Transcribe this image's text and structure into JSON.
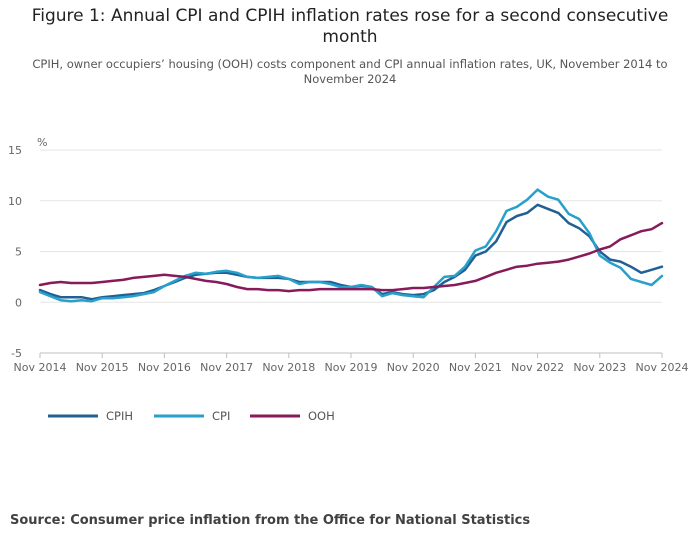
{
  "header": {
    "title": "Figure 1: Annual CPI and CPIH inflation rates rose for a second consecutive month",
    "subtitle": "CPIH, owner occupiers’ housing (OOH) costs component and CPI annual inflation rates, UK, November 2014 to November 2024"
  },
  "footer": {
    "source": "Source: Consumer price inflation from the Office for National Statistics"
  },
  "chart_data": {
    "type": "line",
    "ylabel": "%",
    "ylim": [
      -5,
      15
    ],
    "yticks": [
      "15",
      "10",
      "5",
      "0",
      "-5"
    ],
    "ytick_values": [
      15,
      10,
      5,
      0,
      -5
    ],
    "xlim": [
      0,
      120
    ],
    "xtick_labels": [
      "Nov 2014",
      "Nov 2015",
      "Nov 2016",
      "Nov 2017",
      "Nov 2018",
      "Nov 2019",
      "Nov 2020",
      "Nov 2021",
      "Nov 2022",
      "Nov 2023",
      "Nov 2024"
    ],
    "xtick_values": [
      0,
      12,
      24,
      36,
      48,
      60,
      72,
      84,
      96,
      108,
      120
    ],
    "grid": true,
    "legend_position": "bottom-left",
    "colors": {
      "CPIH": "#206095",
      "CPI": "#27A0CC",
      "OOH": "#871A5B",
      "grid": "#e6e6e6",
      "axis": "#bfbfbf"
    },
    "series": [
      {
        "name": "CPIH",
        "points": [
          [
            0,
            1.2
          ],
          [
            2,
            0.8
          ],
          [
            4,
            0.5
          ],
          [
            6,
            0.5
          ],
          [
            8,
            0.5
          ],
          [
            10,
            0.3
          ],
          [
            12,
            0.5
          ],
          [
            14,
            0.6
          ],
          [
            16,
            0.7
          ],
          [
            18,
            0.8
          ],
          [
            20,
            0.9
          ],
          [
            22,
            1.2
          ],
          [
            24,
            1.6
          ],
          [
            26,
            2.0
          ],
          [
            28,
            2.4
          ],
          [
            30,
            2.7
          ],
          [
            32,
            2.8
          ],
          [
            34,
            2.9
          ],
          [
            36,
            2.9
          ],
          [
            38,
            2.7
          ],
          [
            40,
            2.5
          ],
          [
            42,
            2.4
          ],
          [
            44,
            2.4
          ],
          [
            46,
            2.4
          ],
          [
            48,
            2.3
          ],
          [
            50,
            2.0
          ],
          [
            52,
            2.0
          ],
          [
            54,
            2.0
          ],
          [
            56,
            2.0
          ],
          [
            58,
            1.7
          ],
          [
            60,
            1.5
          ],
          [
            62,
            1.6
          ],
          [
            64,
            1.5
          ],
          [
            66,
            0.8
          ],
          [
            68,
            1.0
          ],
          [
            70,
            0.8
          ],
          [
            72,
            0.7
          ],
          [
            74,
            0.8
          ],
          [
            76,
            1.2
          ],
          [
            78,
            2.0
          ],
          [
            80,
            2.5
          ],
          [
            82,
            3.2
          ],
          [
            84,
            4.6
          ],
          [
            86,
            5.0
          ],
          [
            88,
            6.0
          ],
          [
            90,
            7.9
          ],
          [
            92,
            8.5
          ],
          [
            94,
            8.8
          ],
          [
            96,
            9.6
          ],
          [
            98,
            9.2
          ],
          [
            100,
            8.8
          ],
          [
            102,
            7.8
          ],
          [
            104,
            7.3
          ],
          [
            106,
            6.5
          ],
          [
            108,
            5.0
          ],
          [
            110,
            4.2
          ],
          [
            112,
            4.0
          ],
          [
            114,
            3.5
          ],
          [
            116,
            2.9
          ],
          [
            118,
            3.2
          ],
          [
            120,
            3.5
          ]
        ]
      },
      {
        "name": "CPI",
        "points": [
          [
            0,
            1.0
          ],
          [
            2,
            0.6
          ],
          [
            4,
            0.2
          ],
          [
            6,
            0.1
          ],
          [
            8,
            0.2
          ],
          [
            10,
            0.1
          ],
          [
            12,
            0.4
          ],
          [
            14,
            0.4
          ],
          [
            16,
            0.5
          ],
          [
            18,
            0.6
          ],
          [
            20,
            0.8
          ],
          [
            22,
            1.0
          ],
          [
            24,
            1.6
          ],
          [
            26,
            2.1
          ],
          [
            28,
            2.6
          ],
          [
            30,
            2.9
          ],
          [
            32,
            2.8
          ],
          [
            34,
            3.0
          ],
          [
            36,
            3.1
          ],
          [
            38,
            2.9
          ],
          [
            40,
            2.5
          ],
          [
            42,
            2.4
          ],
          [
            44,
            2.5
          ],
          [
            46,
            2.6
          ],
          [
            48,
            2.3
          ],
          [
            50,
            1.8
          ],
          [
            52,
            2.0
          ],
          [
            54,
            2.0
          ],
          [
            56,
            1.8
          ],
          [
            58,
            1.5
          ],
          [
            60,
            1.5
          ],
          [
            62,
            1.7
          ],
          [
            64,
            1.5
          ],
          [
            66,
            0.6
          ],
          [
            68,
            0.9
          ],
          [
            70,
            0.7
          ],
          [
            72,
            0.6
          ],
          [
            74,
            0.5
          ],
          [
            76,
            1.5
          ],
          [
            78,
            2.5
          ],
          [
            80,
            2.6
          ],
          [
            82,
            3.5
          ],
          [
            84,
            5.1
          ],
          [
            86,
            5.5
          ],
          [
            88,
            7.0
          ],
          [
            90,
            9.0
          ],
          [
            92,
            9.4
          ],
          [
            94,
            10.1
          ],
          [
            96,
            11.1
          ],
          [
            98,
            10.4
          ],
          [
            100,
            10.1
          ],
          [
            102,
            8.7
          ],
          [
            104,
            8.2
          ],
          [
            106,
            6.8
          ],
          [
            108,
            4.6
          ],
          [
            110,
            3.9
          ],
          [
            112,
            3.4
          ],
          [
            114,
            2.3
          ],
          [
            116,
            2.0
          ],
          [
            118,
            1.7
          ],
          [
            120,
            2.6
          ]
        ]
      },
      {
        "name": "OOH",
        "points": [
          [
            0,
            1.7
          ],
          [
            2,
            1.9
          ],
          [
            4,
            2.0
          ],
          [
            6,
            1.9
          ],
          [
            8,
            1.9
          ],
          [
            10,
            1.9
          ],
          [
            12,
            2.0
          ],
          [
            14,
            2.1
          ],
          [
            16,
            2.2
          ],
          [
            18,
            2.4
          ],
          [
            20,
            2.5
          ],
          [
            22,
            2.6
          ],
          [
            24,
            2.7
          ],
          [
            26,
            2.6
          ],
          [
            28,
            2.5
          ],
          [
            30,
            2.3
          ],
          [
            32,
            2.1
          ],
          [
            34,
            2.0
          ],
          [
            36,
            1.8
          ],
          [
            38,
            1.5
          ],
          [
            40,
            1.3
          ],
          [
            42,
            1.3
          ],
          [
            44,
            1.2
          ],
          [
            46,
            1.2
          ],
          [
            48,
            1.1
          ],
          [
            50,
            1.2
          ],
          [
            52,
            1.2
          ],
          [
            54,
            1.3
          ],
          [
            56,
            1.3
          ],
          [
            58,
            1.3
          ],
          [
            60,
            1.3
          ],
          [
            62,
            1.3
          ],
          [
            64,
            1.3
          ],
          [
            66,
            1.2
          ],
          [
            68,
            1.2
          ],
          [
            70,
            1.3
          ],
          [
            72,
            1.4
          ],
          [
            74,
            1.4
          ],
          [
            76,
            1.5
          ],
          [
            78,
            1.6
          ],
          [
            80,
            1.7
          ],
          [
            82,
            1.9
          ],
          [
            84,
            2.1
          ],
          [
            86,
            2.5
          ],
          [
            88,
            2.9
          ],
          [
            90,
            3.2
          ],
          [
            92,
            3.5
          ],
          [
            94,
            3.6
          ],
          [
            96,
            3.8
          ],
          [
            98,
            3.9
          ],
          [
            100,
            4.0
          ],
          [
            102,
            4.2
          ],
          [
            104,
            4.5
          ],
          [
            106,
            4.8
          ],
          [
            108,
            5.2
          ],
          [
            110,
            5.5
          ],
          [
            112,
            6.2
          ],
          [
            114,
            6.6
          ],
          [
            116,
            7.0
          ],
          [
            118,
            7.2
          ],
          [
            120,
            7.8
          ]
        ]
      }
    ]
  }
}
